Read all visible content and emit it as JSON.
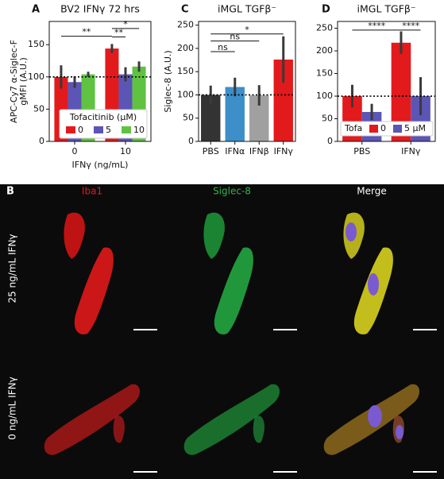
{
  "chart_data": [
    {
      "type": "bar",
      "panel": "A",
      "title": "BV2 IFNγ 72 hrs",
      "ylabel": [
        "APC-Cy7 α-Siglec-F",
        "gMFI (A.U.)"
      ],
      "xlabel": "IFNγ (ng/mL)",
      "categories": [
        "0",
        "10"
      ],
      "series": [
        {
          "name": "0",
          "color": "#e31a1c",
          "values": [
            100,
            144
          ],
          "error": [
            18,
            7
          ]
        },
        {
          "name": "5",
          "color": "#5b55b5",
          "values": [
            92,
            104
          ],
          "error": [
            9,
            11
          ]
        },
        {
          "name": "10",
          "color": "#5fc341",
          "values": [
            104,
            116
          ],
          "error": [
            4,
            8
          ]
        }
      ],
      "ylim": [
        0,
        186
      ],
      "yticks": [
        0,
        50,
        100,
        150
      ],
      "reference_line": 100,
      "legend_title": "Tofacitinib (µM)",
      "legend": "lower center",
      "annotations": [
        {
          "text": "**",
          "y": 163
        },
        {
          "text": "*",
          "y": 175
        },
        {
          "text": "**",
          "y": 162
        }
      ]
    },
    {
      "type": "bar",
      "panel": "C",
      "title": "iMGL TGFβ⁻",
      "ylabel": [
        "Siglec-8 (A.U.)"
      ],
      "categories": [
        "PBS",
        "IFNα",
        "IFNβ",
        "IFNγ"
      ],
      "values": [
        100,
        117,
        99,
        176
      ],
      "error": [
        20,
        20,
        22,
        50
      ],
      "colors": [
        "#333333",
        "#3d8fc9",
        "#a0a0a0",
        "#e31a1c"
      ],
      "ylim": [
        0,
        258
      ],
      "yticks": [
        0,
        50,
        100,
        150,
        200,
        250
      ],
      "reference_line": 100,
      "annotations": [
        {
          "text": "*",
          "y": 231
        },
        {
          "text": "ns",
          "y": 216
        },
        {
          "text": "ns",
          "y": 193
        }
      ]
    },
    {
      "type": "bar",
      "panel": "D",
      "title": "iMGL TGFβ⁻",
      "categories": [
        "PBS",
        "IFNγ"
      ],
      "series": [
        {
          "name": "0",
          "color": "#e31a1c",
          "values": [
            100,
            218
          ],
          "error": [
            25,
            25
          ]
        },
        {
          "name": "5 µM",
          "color": "#5b55b5",
          "values": [
            65,
            100
          ],
          "error": [
            18,
            42
          ]
        }
      ],
      "ylim": [
        0,
        265
      ],
      "yticks": [
        0,
        50,
        100,
        150,
        200,
        250
      ],
      "reference_line": 100,
      "legend_title": "Tofa",
      "legend": "lower right",
      "annotations": [
        {
          "text": "****",
          "y": 246
        },
        {
          "text": "****",
          "y": 246
        }
      ]
    }
  ],
  "panel_b": {
    "label": "B",
    "columns": [
      "Iba1",
      "Siglec-8",
      "Merge"
    ],
    "rows": [
      "25 ng/mL IFNγ",
      "0 ng/mL IFNγ"
    ]
  }
}
